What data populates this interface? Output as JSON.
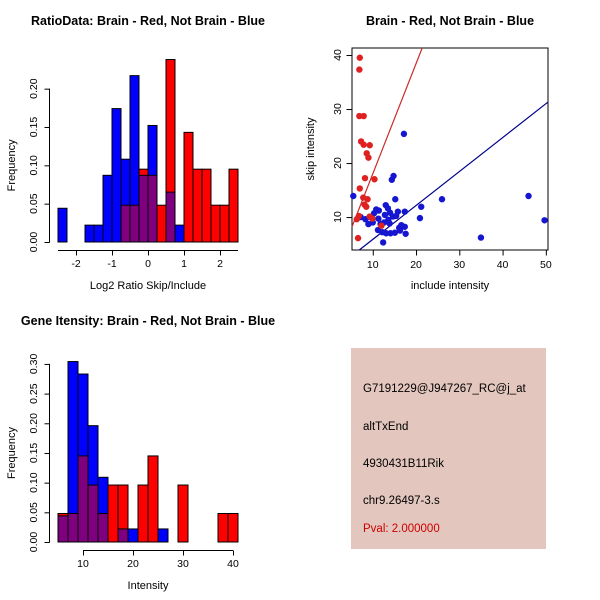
{
  "chart_data": [
    {
      "id": "ratio-histogram",
      "type": "bar",
      "subtype": "overlaid-histogram",
      "title": "RatioData: Brain - Red, Not Brain - Blue",
      "xlabel": "Log2 Ratio Skip/Include",
      "ylabel": "Frequency",
      "xlim": [
        -2.5,
        2.5
      ],
      "ylim": [
        0,
        0.24
      ],
      "x_axis_span": [
        -2.5,
        2.5
      ],
      "x_ticks": [
        -2,
        -1,
        0,
        1,
        2
      ],
      "x_tick_labels": [
        "-2",
        "-1",
        "0",
        "1",
        "2"
      ],
      "y_ticks": [
        0,
        0.05,
        0.1,
        0.15,
        0.2
      ],
      "y_tick_labels": [
        "0.00",
        "0.05",
        "0.10",
        "0.15",
        "0.20"
      ],
      "colors": {
        "blue": "#0000FF",
        "red": "#FF0000",
        "overlap": "#7F007F",
        "border": "#000000"
      },
      "legend_note": "Brain = red histogram, Not Brain = blue histogram, overlap = purple",
      "bins": [
        {
          "x0": -2.5,
          "x1": -2.25,
          "blue": 0.044,
          "red": 0
        },
        {
          "x0": -1.75,
          "x1": -1.5,
          "blue": 0.022,
          "red": 0
        },
        {
          "x0": -1.5,
          "x1": -1.25,
          "blue": 0.022,
          "red": 0
        },
        {
          "x0": -1.25,
          "x1": -1.0,
          "blue": 0.087,
          "red": 0
        },
        {
          "x0": -1.0,
          "x1": -0.75,
          "blue": 0.174,
          "red": 0
        },
        {
          "x0": -0.75,
          "x1": -0.5,
          "blue": 0.108,
          "red": 0.048
        },
        {
          "x0": -0.5,
          "x1": -0.25,
          "blue": 0.217,
          "red": 0.048
        },
        {
          "x0": -0.25,
          "x1": 0.0,
          "blue": 0.087,
          "red": 0.095
        },
        {
          "x0": 0.0,
          "x1": 0.25,
          "blue": 0.152,
          "red": 0.087
        },
        {
          "x0": 0.25,
          "x1": 0.5,
          "blue": 0,
          "red": 0.048
        },
        {
          "x0": 0.5,
          "x1": 0.75,
          "blue": 0.065,
          "red": 0.238
        },
        {
          "x0": 0.75,
          "x1": 1.0,
          "blue": 0.022,
          "red": 0
        },
        {
          "x0": 1.0,
          "x1": 1.25,
          "blue": 0,
          "red": 0.143
        },
        {
          "x0": 1.25,
          "x1": 1.5,
          "blue": 0,
          "red": 0.095
        },
        {
          "x0": 1.5,
          "x1": 1.75,
          "blue": 0,
          "red": 0.095
        },
        {
          "x0": 1.75,
          "x1": 2.0,
          "blue": 0,
          "red": 0.048
        },
        {
          "x0": 2.0,
          "x1": 2.25,
          "blue": 0,
          "red": 0.048
        },
        {
          "x0": 2.25,
          "x1": 2.5,
          "blue": 0,
          "red": 0.095
        }
      ]
    },
    {
      "id": "intensity-scatter",
      "type": "scatter",
      "title": "Brain - Red, Not Brain - Blue",
      "xlabel": "include intensity",
      "ylabel": "skip intensity",
      "xlim": [
        5.2,
        50.5
      ],
      "ylim": [
        3.9,
        41.3
      ],
      "x_ticks": [
        10,
        20,
        30,
        40,
        50
      ],
      "x_tick_labels": [
        "10",
        "20",
        "30",
        "40",
        "50"
      ],
      "y_ticks": [
        10,
        20,
        30,
        40
      ],
      "y_tick_labels": [
        "10",
        "20",
        "30",
        "40"
      ],
      "series": [
        {
          "name": "not-brain",
          "color": "#1616D1",
          "points": [
            [
              5.5,
              13.9
            ],
            [
              7.2,
              10.0
            ],
            [
              8.3,
              9.6
            ],
            [
              9.0,
              8.7
            ],
            [
              9.4,
              10.0
            ],
            [
              10.0,
              9.0
            ],
            [
              10.3,
              10.7
            ],
            [
              10.8,
              11.4
            ],
            [
              11.2,
              7.6
            ],
            [
              11.3,
              9.7
            ],
            [
              11.4,
              11.2
            ],
            [
              11.8,
              8.7
            ],
            [
              12.2,
              7.2
            ],
            [
              12.4,
              5.3
            ],
            [
              12.6,
              9.0
            ],
            [
              12.8,
              10.4
            ],
            [
              13.0,
              12.2
            ],
            [
              13.1,
              7.0
            ],
            [
              13.5,
              11.6
            ],
            [
              13.6,
              9.5
            ],
            [
              13.9,
              8.8
            ],
            [
              14.0,
              10.8
            ],
            [
              14.1,
              7.0
            ],
            [
              14.4,
              16.9
            ],
            [
              14.7,
              10.1
            ],
            [
              14.8,
              17.6
            ],
            [
              15.1,
              7.1
            ],
            [
              15.2,
              13.3
            ],
            [
              15.4,
              10.2
            ],
            [
              15.8,
              11.0
            ],
            [
              16.1,
              8.0
            ],
            [
              16.3,
              7.5
            ],
            [
              16.6,
              8.5
            ],
            [
              17.2,
              25.4
            ],
            [
              17.4,
              11.0
            ],
            [
              17.4,
              8.2
            ],
            [
              17.6,
              6.9
            ],
            [
              20.9,
              9.8
            ],
            [
              21.2,
              11.9
            ],
            [
              26.0,
              13.3
            ],
            [
              35.0,
              6.2
            ],
            [
              46.0,
              13.9
            ],
            [
              49.7,
              9.4
            ]
          ]
        },
        {
          "name": "brain",
          "color": "#DE2121",
          "points": [
            [
              7.0,
              39.5
            ],
            [
              6.9,
              37.3
            ],
            [
              6.9,
              28.7
            ],
            [
              7.9,
              28.7
            ],
            [
              7.3,
              24.0
            ],
            [
              7.9,
              23.4
            ],
            [
              9.3,
              23.3
            ],
            [
              8.6,
              21.8
            ],
            [
              9.0,
              21.0
            ],
            [
              8.2,
              17.2
            ],
            [
              10.4,
              17.0
            ],
            [
              7.0,
              15.3
            ],
            [
              7.8,
              13.6
            ],
            [
              8.8,
              13.3
            ],
            [
              8.1,
              12.3
            ],
            [
              8.5,
              11.9
            ],
            [
              6.8,
              10.2
            ],
            [
              9.3,
              10.1
            ],
            [
              6.3,
              9.6
            ],
            [
              9.9,
              9.7
            ],
            [
              12.0,
              8.4
            ],
            [
              6.6,
              6.1
            ]
          ]
        }
      ],
      "lines": [
        {
          "name": "brain-fit-line",
          "slope": 2.04,
          "intercept": -2.4,
          "color": "#CC2B2B"
        },
        {
          "name": "not-brain-fit-line",
          "slope": 0.628,
          "intercept": -0.42,
          "color": "#00008B"
        }
      ]
    },
    {
      "id": "gene-intensity-histogram",
      "type": "bar",
      "subtype": "overlaid-histogram",
      "title": "Gene Itensity: Brain - Red, Not Brain - Blue",
      "xlabel": "Intensity",
      "ylabel": "Frequency",
      "xlim": [
        5,
        41
      ],
      "ylim": [
        0,
        0.31
      ],
      "x_axis_span": [
        10,
        40
      ],
      "x_ticks": [
        10,
        20,
        30,
        40
      ],
      "x_tick_labels": [
        "10",
        "20",
        "30",
        "40"
      ],
      "y_ticks": [
        0,
        0.05,
        0.1,
        0.15,
        0.2,
        0.25,
        0.3
      ],
      "y_tick_labels": [
        "0.00",
        "0.05",
        "0.10",
        "0.15",
        "0.20",
        "0.25",
        "0.30"
      ],
      "colors": {
        "blue": "#0000FF",
        "red": "#FF0000",
        "overlap": "#7F007F",
        "border": "#000000"
      },
      "legend_note": "Brain = red histogram, Not Brain = blue histogram, overlap = purple",
      "bins": [
        {
          "x0": 5,
          "x1": 7,
          "blue": 0.044,
          "red": 0.048
        },
        {
          "x0": 7,
          "x1": 9,
          "blue": 0.304,
          "red": 0.048
        },
        {
          "x0": 9,
          "x1": 11,
          "blue": 0.283,
          "red": 0.145
        },
        {
          "x0": 11,
          "x1": 13,
          "blue": 0.196,
          "red": 0.096
        },
        {
          "x0": 13,
          "x1": 15,
          "blue": 0.109,
          "red": 0.048
        },
        {
          "x0": 15,
          "x1": 17,
          "blue": 0,
          "red": 0.096
        },
        {
          "x0": 17,
          "x1": 19,
          "blue": 0.022,
          "red": 0.096
        },
        {
          "x0": 19,
          "x1": 21,
          "blue": 0.022,
          "red": 0
        },
        {
          "x0": 21,
          "x1": 23,
          "blue": 0,
          "red": 0.096
        },
        {
          "x0": 23,
          "x1": 25,
          "blue": 0,
          "red": 0.145
        },
        {
          "x0": 25,
          "x1": 27,
          "blue": 0.022,
          "red": 0
        },
        {
          "x0": 29,
          "x1": 31,
          "blue": 0,
          "red": 0.096
        },
        {
          "x0": 37,
          "x1": 39,
          "blue": 0,
          "red": 0.048
        },
        {
          "x0": 39,
          "x1": 41,
          "blue": 0,
          "red": 0.048
        }
      ]
    }
  ],
  "info_panel": {
    "background": "#E3C6BD",
    "lines": [
      {
        "text": "G7191229@J947267_RC@j_at",
        "color": "#000000"
      },
      {
        "text": "altTxEnd",
        "color": "#000000"
      },
      {
        "text": "4930431B11Rik",
        "color": "#000000"
      },
      {
        "text": "chr9.26497-3.s",
        "color": "#000000"
      },
      {
        "text": "Pval: 2.000000",
        "color": "#CC0000"
      }
    ]
  }
}
